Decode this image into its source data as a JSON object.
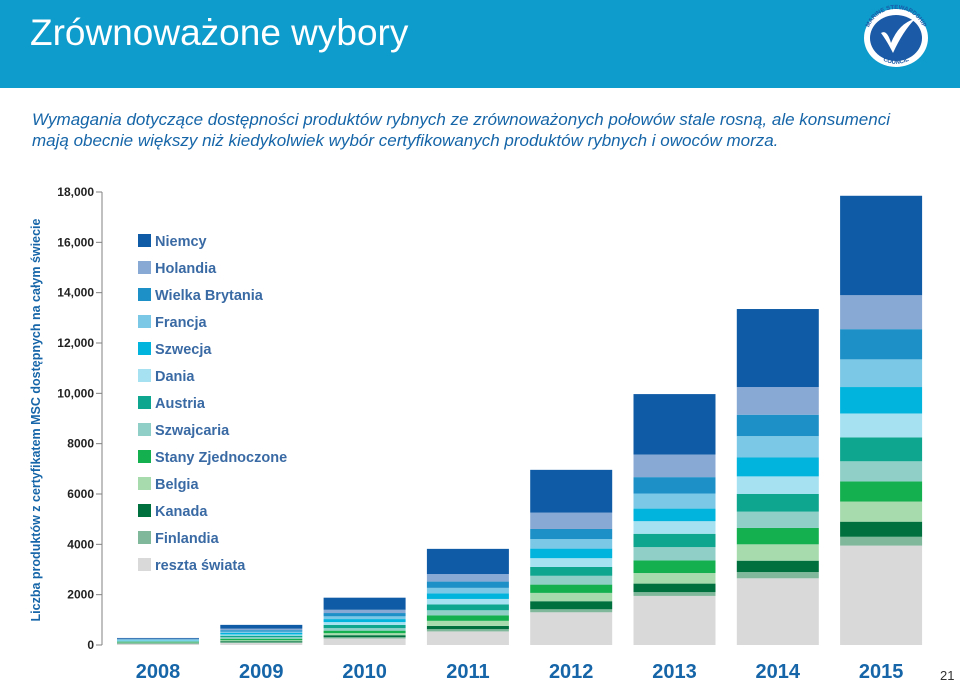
{
  "header": {
    "title": "Zrównoważone wybory",
    "logo_top_text": "MARINE STEWARDSHIP",
    "logo_bottom_text": "COUNCIL"
  },
  "subtitle": "Wymagania dotyczące dostępności produktów rybnych ze zrównoważonych połowów stale rosną, ale konsumenci mają obecnie większy niż kiedykolwiek wybór certyfikowanych produktów rybnych i owoców morza.",
  "page_number": "21",
  "colors": {
    "header": "#0d9ccc",
    "text_blue": "#1565a8"
  },
  "chart_data": {
    "type": "bar",
    "stacked": true,
    "ylabel": "Liczba produktów z certyfikatem MSC dostępnych na całym świecie",
    "xlabel": "",
    "ylim": [
      0,
      18000
    ],
    "yticks": [
      0,
      2000,
      4000,
      6000,
      8000,
      10000,
      12000,
      14000,
      16000,
      18000
    ],
    "ytick_labels": [
      "0",
      "2000",
      "4000",
      "6000",
      "8000",
      "10,000",
      "12,000",
      "14,000",
      "16,000",
      "18,000"
    ],
    "grid": false,
    "legend": "top-left",
    "categories": [
      "2008",
      "2009",
      "2010",
      "2011",
      "2012",
      "2013",
      "2014",
      "2015"
    ],
    "series": [
      {
        "name": "reszta świata",
        "color": "#d9d9d9",
        "values": [
          50,
          80,
          260,
          540,
          1300,
          1950,
          2650,
          3950
        ]
      },
      {
        "name": "Finlandia",
        "color": "#7fb89a",
        "values": [
          20,
          30,
          50,
          90,
          120,
          150,
          250,
          350
        ]
      },
      {
        "name": "Kanada",
        "color": "#00713e",
        "values": [
          20,
          40,
          80,
          130,
          320,
          340,
          450,
          600
        ]
      },
      {
        "name": "Belgia",
        "color": "#a7dbae",
        "values": [
          15,
          40,
          80,
          200,
          330,
          420,
          650,
          800
        ]
      },
      {
        "name": "Stany Zjednoczone",
        "color": "#14b04f",
        "values": [
          20,
          60,
          100,
          220,
          330,
          500,
          650,
          800
        ]
      },
      {
        "name": "Szwajcaria",
        "color": "#8fcfc8",
        "values": [
          20,
          60,
          100,
          200,
          350,
          530,
          650,
          800
        ]
      },
      {
        "name": "Austria",
        "color": "#0ea68f",
        "values": [
          20,
          60,
          130,
          230,
          350,
          530,
          700,
          950
        ]
      },
      {
        "name": "Dania",
        "color": "#a6e1f2",
        "values": [
          15,
          50,
          110,
          220,
          350,
          500,
          700,
          950
        ]
      },
      {
        "name": "Szwecja",
        "color": "#00b4dd",
        "values": [
          15,
          60,
          120,
          220,
          380,
          500,
          750,
          1050
        ]
      },
      {
        "name": "Francja",
        "color": "#7bc7e6",
        "values": [
          15,
          50,
          110,
          220,
          380,
          600,
          850,
          1100
        ]
      },
      {
        "name": "Wielka Brytania",
        "color": "#1e90c8",
        "values": [
          20,
          60,
          130,
          250,
          400,
          650,
          850,
          1200
        ]
      },
      {
        "name": "Holandia",
        "color": "#88a9d4",
        "values": [
          20,
          60,
          130,
          300,
          650,
          900,
          1100,
          1350
        ]
      },
      {
        "name": "Niemcy",
        "color": "#0f5ba6",
        "values": [
          30,
          150,
          480,
          1000,
          1700,
          2400,
          3100,
          3950
        ]
      }
    ]
  }
}
